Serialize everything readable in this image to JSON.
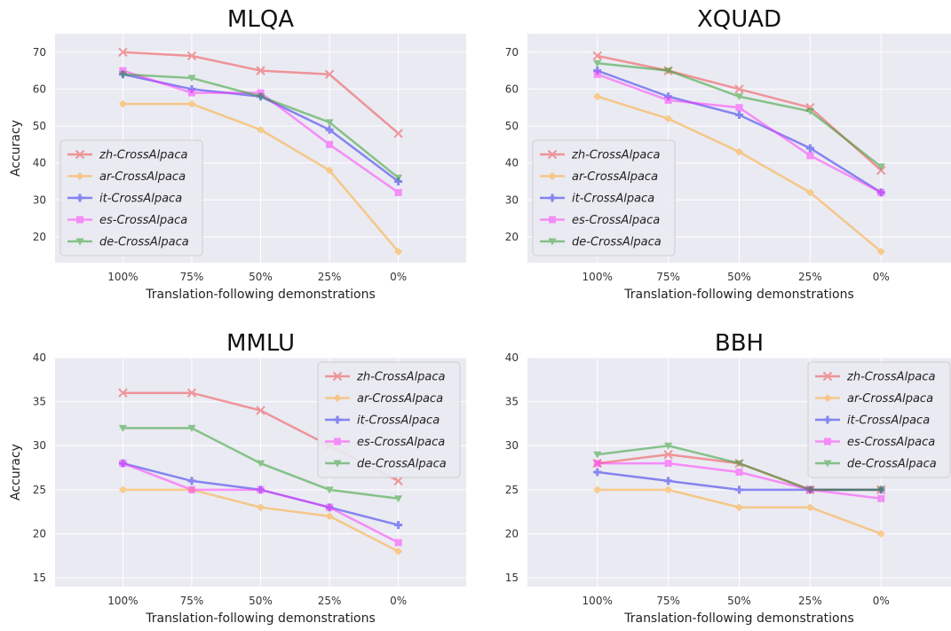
{
  "figure": {
    "series_colors": [
      "#f04040",
      "#ffa620",
      "#2020f0",
      "#ff30ff",
      "#229922"
    ],
    "markers": [
      "x",
      "diamond",
      "plus",
      "square",
      "triangle-down"
    ],
    "background": "#eaeaf2",
    "grid": true
  },
  "chart_data": [
    {
      "type": "line",
      "title": "MLQA",
      "xlabel": "Translation-following demonstrations",
      "ylabel": "Accuracy",
      "categories": [
        "100%",
        "75%",
        "50%",
        "25%",
        "0%"
      ],
      "ylim": [
        13,
        75
      ],
      "yticks": [
        20,
        30,
        40,
        50,
        60,
        70
      ],
      "legend_position": "center-left",
      "series": [
        {
          "name": "zh-CrossAlpaca",
          "values": [
            70,
            69,
            65,
            64,
            48
          ]
        },
        {
          "name": "ar-CrossAlpaca",
          "values": [
            56,
            56,
            49,
            38,
            16
          ]
        },
        {
          "name": "it-CrossAlpaca",
          "values": [
            64,
            60,
            58,
            49,
            35
          ]
        },
        {
          "name": "es-CrossAlpaca",
          "values": [
            65,
            59,
            59,
            45,
            32
          ]
        },
        {
          "name": "de-CrossAlpaca",
          "values": [
            64,
            63,
            58,
            51,
            36
          ]
        }
      ]
    },
    {
      "type": "line",
      "title": "XQUAD",
      "xlabel": "Translation-following demonstrations",
      "ylabel": "",
      "categories": [
        "100%",
        "75%",
        "50%",
        "25%",
        "0%"
      ],
      "ylim": [
        13,
        75
      ],
      "yticks": [
        20,
        30,
        40,
        50,
        60,
        70
      ],
      "legend_position": "center-left",
      "series": [
        {
          "name": "zh-CrossAlpaca",
          "values": [
            69,
            65,
            60,
            55,
            38
          ]
        },
        {
          "name": "ar-CrossAlpaca",
          "values": [
            58,
            52,
            43,
            32,
            16
          ]
        },
        {
          "name": "it-CrossAlpaca",
          "values": [
            65,
            58,
            53,
            44,
            32
          ]
        },
        {
          "name": "es-CrossAlpaca",
          "values": [
            64,
            57,
            55,
            42,
            32
          ]
        },
        {
          "name": "de-CrossAlpaca",
          "values": [
            67,
            65,
            58,
            54,
            39
          ]
        }
      ]
    },
    {
      "type": "line",
      "title": "MMLU",
      "xlabel": "Translation-following demonstrations",
      "ylabel": "Accuracy",
      "categories": [
        "100%",
        "75%",
        "50%",
        "25%",
        "0%"
      ],
      "ylim": [
        14,
        40
      ],
      "yticks": [
        15,
        20,
        25,
        30,
        35,
        40
      ],
      "legend_position": "upper-right",
      "series": [
        {
          "name": "zh-CrossAlpaca",
          "values": [
            36,
            36,
            34,
            30,
            26
          ]
        },
        {
          "name": "ar-CrossAlpaca",
          "values": [
            25,
            25,
            23,
            22,
            18
          ]
        },
        {
          "name": "it-CrossAlpaca",
          "values": [
            28,
            26,
            25,
            23,
            21
          ]
        },
        {
          "name": "es-CrossAlpaca",
          "values": [
            28,
            25,
            25,
            23,
            19
          ]
        },
        {
          "name": "de-CrossAlpaca",
          "values": [
            32,
            32,
            28,
            25,
            24
          ]
        }
      ]
    },
    {
      "type": "line",
      "title": "BBH",
      "xlabel": "Translation-following demonstrations",
      "ylabel": "",
      "categories": [
        "100%",
        "75%",
        "50%",
        "25%",
        "0%"
      ],
      "ylim": [
        14,
        40
      ],
      "yticks": [
        15,
        20,
        25,
        30,
        35,
        40
      ],
      "legend_position": "upper-right",
      "series": [
        {
          "name": "zh-CrossAlpaca",
          "values": [
            28,
            29,
            28,
            25,
            25
          ]
        },
        {
          "name": "ar-CrossAlpaca",
          "values": [
            25,
            25,
            23,
            23,
            20
          ]
        },
        {
          "name": "it-CrossAlpaca",
          "values": [
            27,
            26,
            25,
            25,
            25
          ]
        },
        {
          "name": "es-CrossAlpaca",
          "values": [
            28,
            28,
            27,
            25,
            24
          ]
        },
        {
          "name": "de-CrossAlpaca",
          "values": [
            29,
            30,
            28,
            25,
            25
          ]
        }
      ]
    }
  ]
}
